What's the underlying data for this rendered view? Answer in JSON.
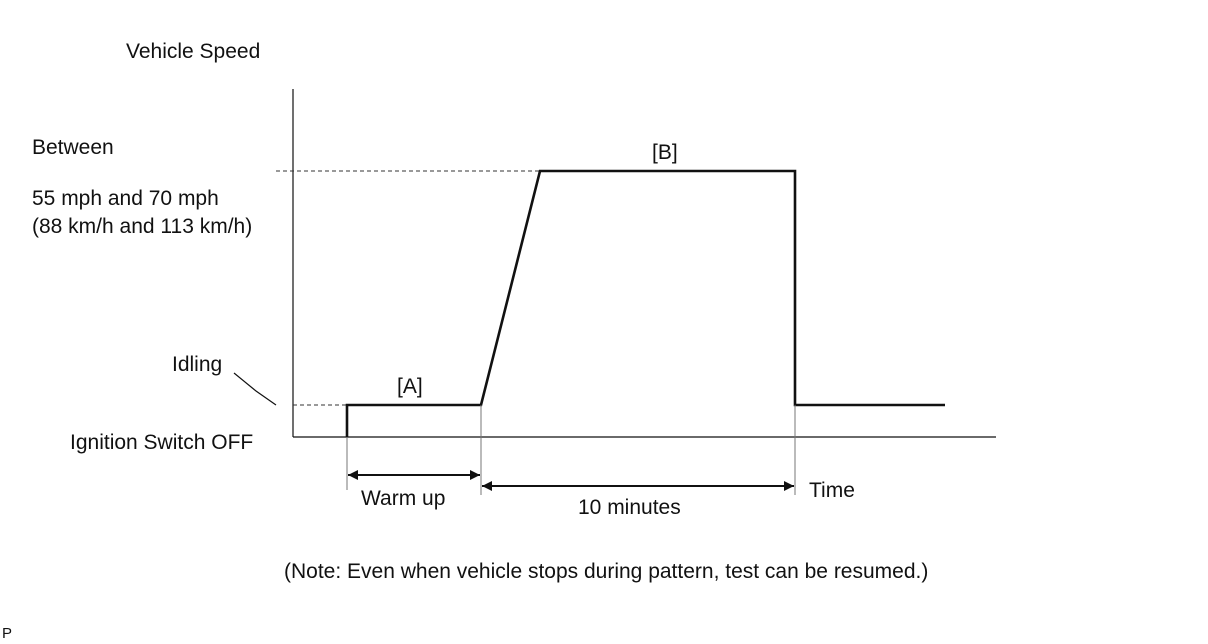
{
  "y_axis_label": "Vehicle Speed",
  "x_axis_label": "Time",
  "speed_level": {
    "line1": "Between",
    "line2": "55 mph and 70 mph",
    "line3": "(88 km/h and 113 km/h)"
  },
  "idling_label": "Idling",
  "ignition_label": "Ignition Switch OFF",
  "phase_a_label": "[A]",
  "phase_b_label": "[B]",
  "warm_up_label": "Warm up",
  "duration_label": "10 minutes",
  "note": "(Note: Even when vehicle stops during pattern, test can be resumed.)",
  "corner_mark": "P"
}
